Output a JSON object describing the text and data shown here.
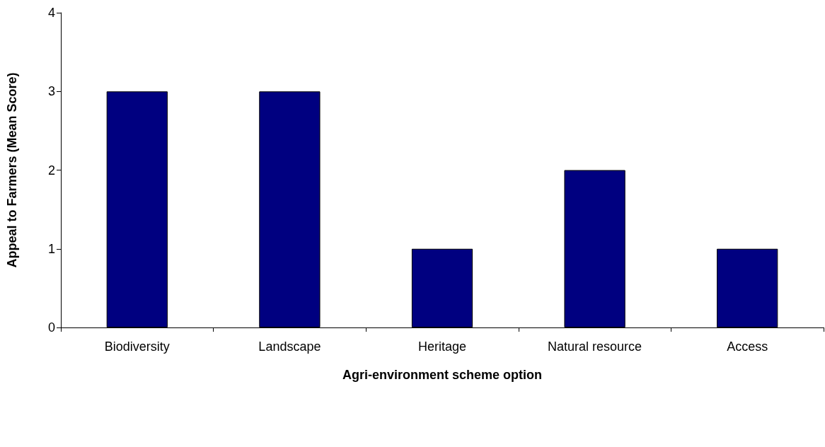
{
  "chart_data": {
    "type": "bar",
    "xlabel": "Agri-environment scheme option",
    "ylabel": "Appeal to Farmers (Mean Score)",
    "categories": [
      "Biodiversity",
      "Landscape",
      "Heritage",
      "Natural resource",
      "Access"
    ],
    "values": [
      3,
      3,
      1,
      2,
      1
    ],
    "color": "#000080",
    "ylim": [
      0,
      4
    ],
    "yticks": [
      0,
      1,
      2,
      3,
      4
    ],
    "grid": false
  }
}
